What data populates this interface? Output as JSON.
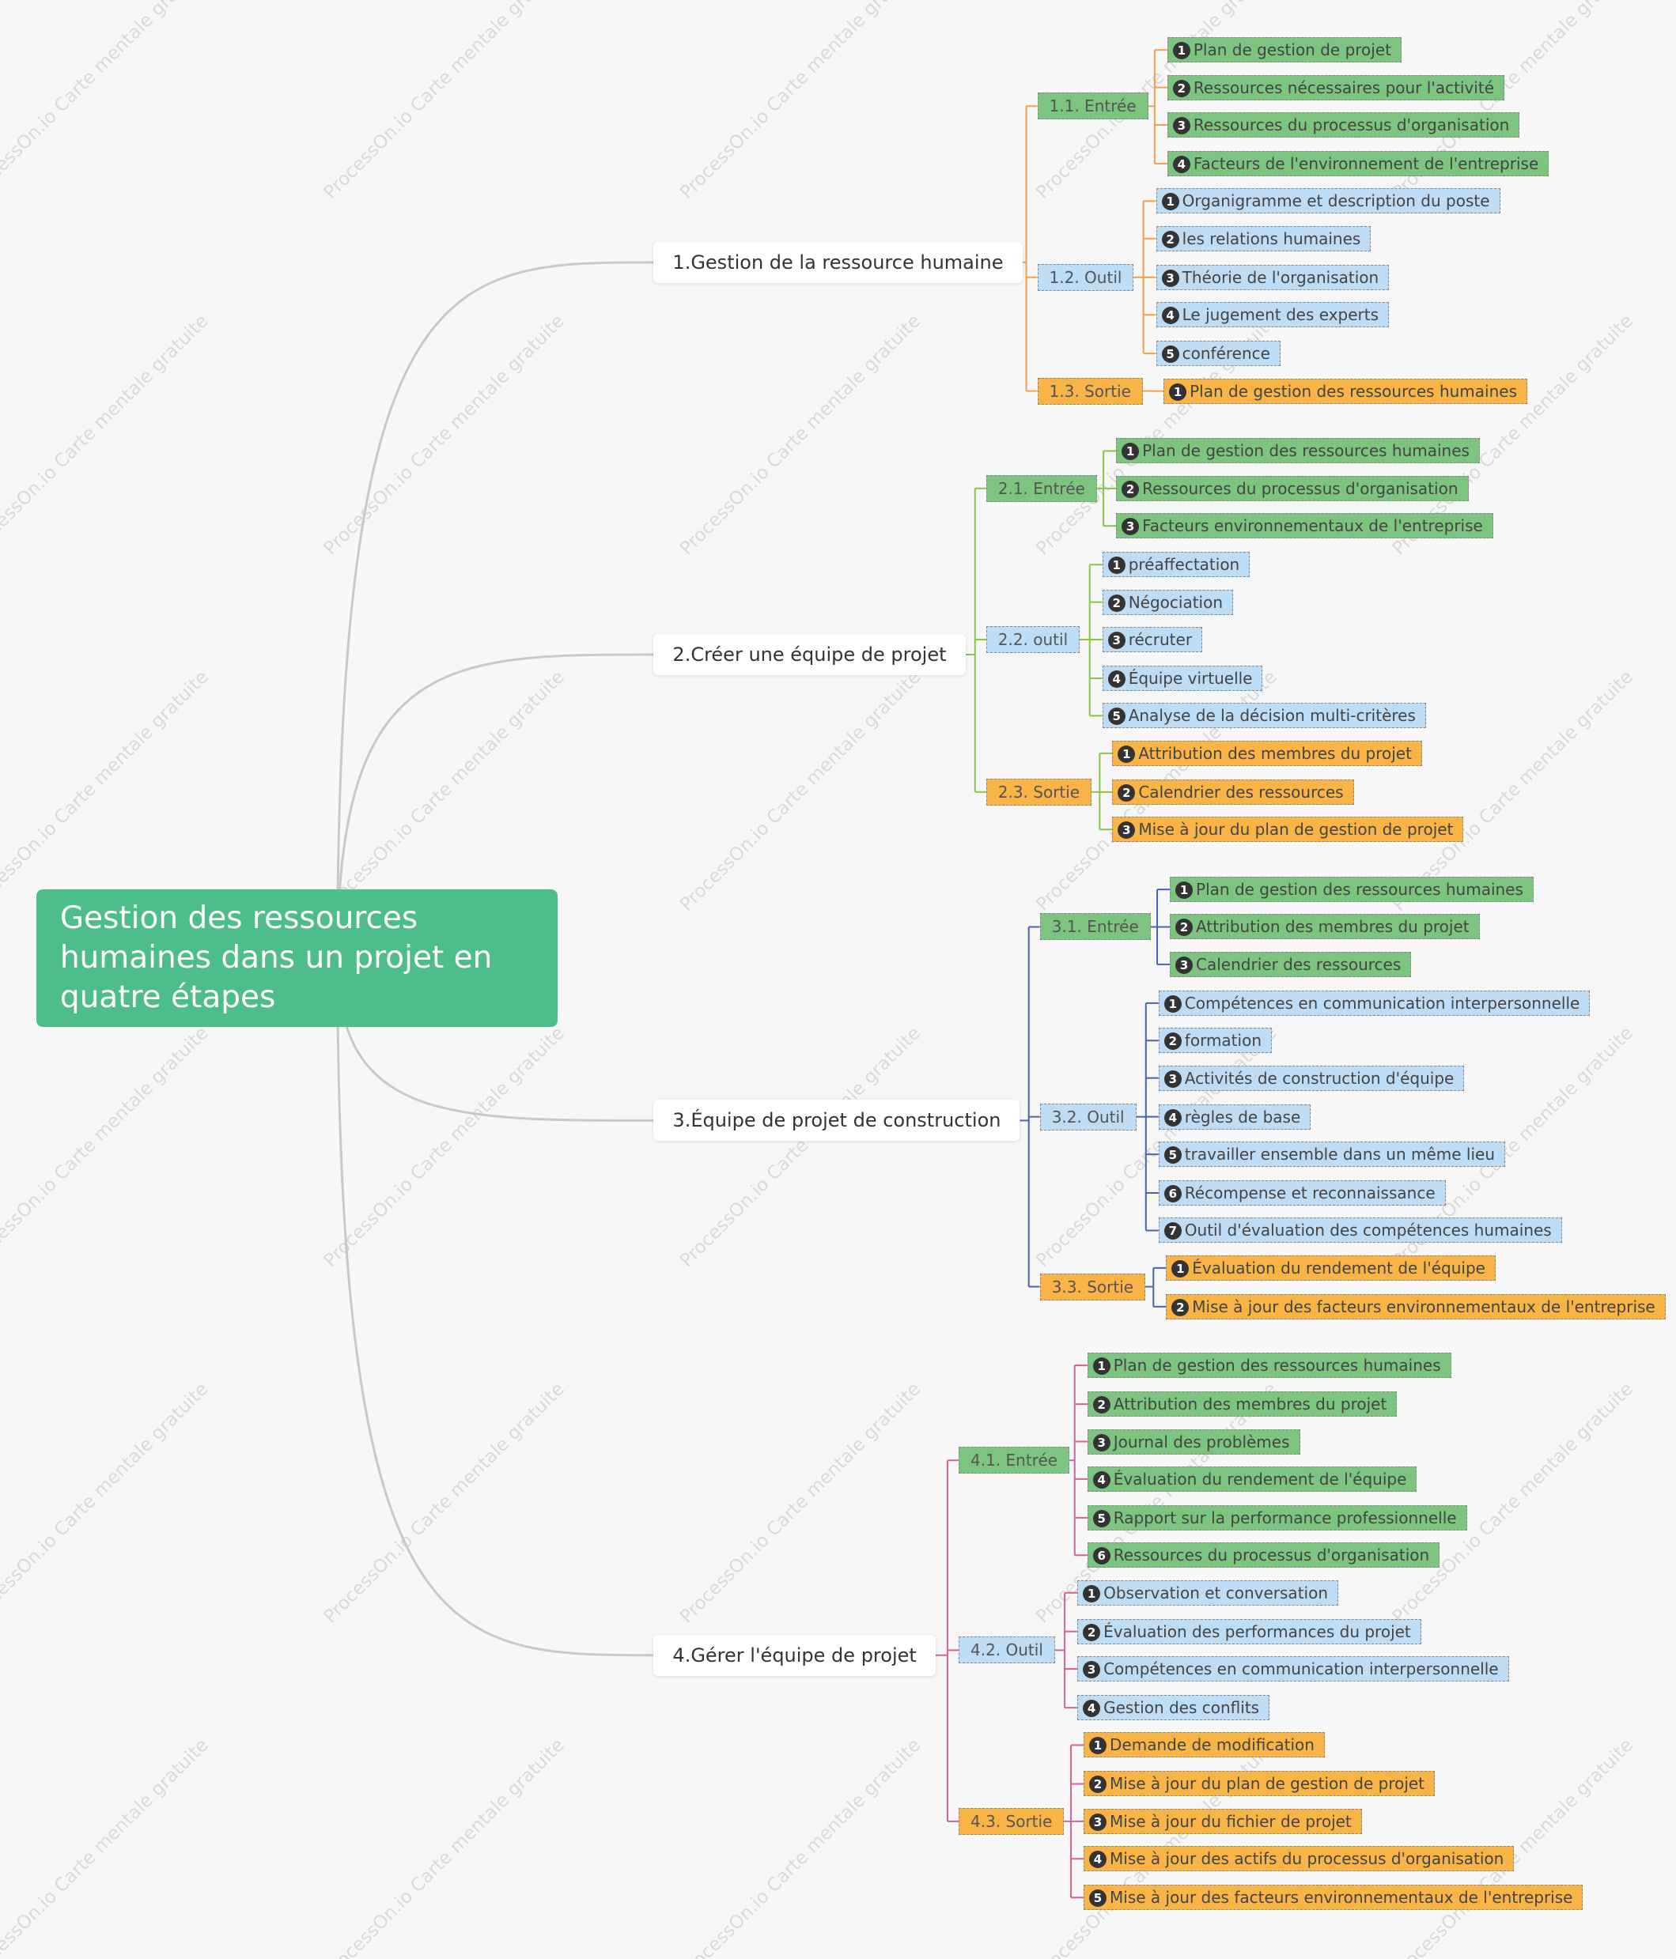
{
  "root": "Gestion des ressources humaines dans un projet en quatre étapes",
  "watermark": "ProcessOn.io Carte mentale gratuite",
  "branches": [
    {
      "label": "1.Gestion de la ressource humaine",
      "groups": [
        {
          "label": "1.1. Entrée",
          "items": [
            {
              "n": 1,
              "text": "Plan de gestion de projet"
            },
            {
              "n": 2,
              "text": "Ressources nécessaires pour l'activité"
            },
            {
              "n": 3,
              "text": "Ressources du processus d'organisation"
            },
            {
              "n": 4,
              "text": "Facteurs de l'environnement de l'entreprise"
            }
          ]
        },
        {
          "label": "1.2. Outil",
          "items": [
            {
              "n": 1,
              "text": "Organigramme et description du poste"
            },
            {
              "n": 2,
              "text": "les relations humaines"
            },
            {
              "n": 3,
              "text": "Théorie de l'organisation"
            },
            {
              "n": 4,
              "text": "Le jugement des experts"
            },
            {
              "n": 5,
              "text": "conférence"
            }
          ]
        },
        {
          "label": "1.3. Sortie",
          "items": [
            {
              "n": 1,
              "text": "Plan de gestion des ressources humaines"
            }
          ]
        }
      ]
    },
    {
      "label": "2.Créer une équipe de projet",
      "groups": [
        {
          "label": "2.1. Entrée",
          "items": [
            {
              "n": 1,
              "text": "Plan de gestion des ressources humaines"
            },
            {
              "n": 2,
              "text": "Ressources du processus d'organisation"
            },
            {
              "n": 3,
              "text": "Facteurs environnementaux de l'entreprise"
            }
          ]
        },
        {
          "label": "2.2. outil",
          "items": [
            {
              "n": 1,
              "text": "préaffectation"
            },
            {
              "n": 2,
              "text": "Négociation"
            },
            {
              "n": 3,
              "text": "récruter"
            },
            {
              "n": 4,
              "text": "Équipe virtuelle"
            },
            {
              "n": 5,
              "text": "Analyse de la décision multi-critères"
            }
          ]
        },
        {
          "label": "2.3. Sortie",
          "items": [
            {
              "n": 1,
              "text": "Attribution des membres du projet"
            },
            {
              "n": 2,
              "text": "Calendrier des ressources"
            },
            {
              "n": 3,
              "text": "Mise à jour du plan de gestion de projet"
            }
          ]
        }
      ]
    },
    {
      "label": "3.Équipe de projet de construction",
      "groups": [
        {
          "label": "3.1. Entrée",
          "items": [
            {
              "n": 1,
              "text": "Plan de gestion des ressources humaines"
            },
            {
              "n": 2,
              "text": "Attribution des membres du projet"
            },
            {
              "n": 3,
              "text": "Calendrier des ressources"
            }
          ]
        },
        {
          "label": "3.2. Outil",
          "items": [
            {
              "n": 1,
              "text": "Compétences en communication interpersonnelle"
            },
            {
              "n": 2,
              "text": "formation"
            },
            {
              "n": 3,
              "text": "Activités de construction d'équipe"
            },
            {
              "n": 4,
              "text": "règles de base"
            },
            {
              "n": 5,
              "text": "travailler ensemble dans un même lieu"
            },
            {
              "n": 6,
              "text": "Récompense et reconnaissance"
            },
            {
              "n": 7,
              "text": "Outil d'évaluation des compétences humaines"
            }
          ]
        },
        {
          "label": "3.3. Sortie",
          "items": [
            {
              "n": 1,
              "text": "Évaluation du rendement de l'équipe"
            },
            {
              "n": 2,
              "text": "Mise à jour des facteurs environnementaux de l'entreprise"
            }
          ]
        }
      ]
    },
    {
      "label": "4.Gérer l'équipe de projet",
      "groups": [
        {
          "label": "4.1. Entrée",
          "items": [
            {
              "n": 1,
              "text": "Plan de gestion des ressources humaines"
            },
            {
              "n": 2,
              "text": "Attribution des membres du projet"
            },
            {
              "n": 3,
              "text": "Journal des problèmes"
            },
            {
              "n": 4,
              "text": "Évaluation du rendement de l'équipe"
            },
            {
              "n": 5,
              "text": "Rapport sur la performance professionnelle"
            },
            {
              "n": 6,
              "text": "Ressources du processus d'organisation"
            }
          ]
        },
        {
          "label": "4.2. Outil",
          "items": [
            {
              "n": 1,
              "text": "Observation et conversation"
            },
            {
              "n": 2,
              "text": "Évaluation des performances du projet"
            },
            {
              "n": 3,
              "text": "Compétences en communication interpersonnelle"
            },
            {
              "n": 4,
              "text": "Gestion des conflits"
            }
          ]
        },
        {
          "label": "4.3. Sortie",
          "items": [
            {
              "n": 1,
              "text": "Demande de modification"
            },
            {
              "n": 2,
              "text": "Mise à jour du plan de gestion de projet"
            },
            {
              "n": 3,
              "text": "Mise à jour du fichier de projet"
            },
            {
              "n": 4,
              "text": "Mise à jour des actifs du processus d'organisation"
            },
            {
              "n": 5,
              "text": "Mise à jour des facteurs environnementaux de l'entreprise"
            }
          ]
        }
      ]
    }
  ]
}
